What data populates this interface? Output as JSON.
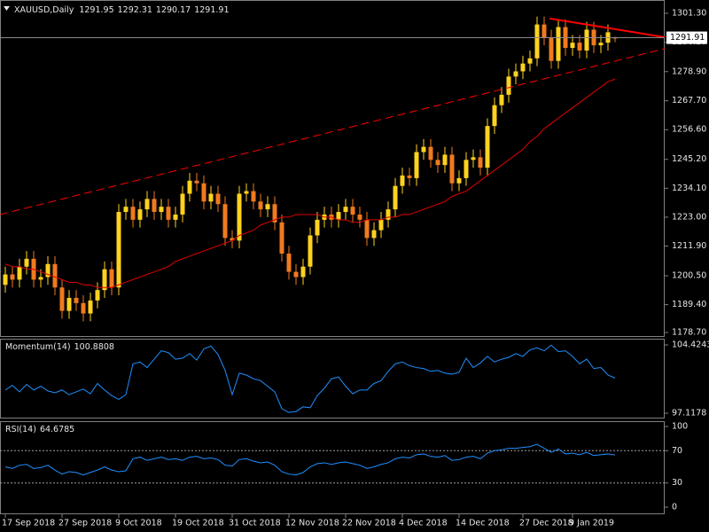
{
  "chart_data": [
    {
      "type": "candlestick",
      "title": "XAUUSD,Daily",
      "categories": [
        "17 Sep 2018",
        null,
        null,
        null,
        null,
        null,
        null,
        null,
        "27 Sep 2018",
        null,
        null,
        null,
        null,
        null,
        null,
        null,
        "9 Oct 2018",
        null,
        null,
        null,
        null,
        null,
        null,
        null,
        "19 Oct 2018",
        null,
        null,
        null,
        null,
        null,
        null,
        null,
        "31 Oct 2018",
        null,
        null,
        null,
        null,
        null,
        null,
        null,
        "12 Nov 2018",
        null,
        null,
        null,
        null,
        null,
        null,
        null,
        "22 Nov 2018",
        null,
        null,
        null,
        null,
        null,
        null,
        null,
        "4 Dec 2018",
        null,
        null,
        null,
        null,
        null,
        null,
        null,
        "14 Dec 2018",
        null,
        null,
        null,
        null,
        null,
        null,
        null,
        null,
        "27 Dec 2018",
        null,
        null,
        null,
        null,
        null,
        null,
        "9 Jan 2019",
        null,
        null,
        null,
        null,
        null,
        null
      ],
      "open": [
        1197,
        1201,
        1199,
        1204,
        1207,
        1199,
        1200,
        1205,
        1196,
        1187,
        1192,
        1190,
        1186,
        1191,
        1195,
        1203,
        1196,
        1225,
        1227,
        1222,
        1226,
        1230,
        1225,
        1227,
        1222,
        1224,
        1232,
        1237,
        1236,
        1229,
        1232,
        1228,
        1215,
        1214,
        1232,
        1233,
        1229,
        1226,
        1228,
        1221,
        1209,
        1202,
        1200,
        1204,
        1216,
        1222,
        1224,
        1222,
        1225,
        1227,
        1224,
        1222,
        1215,
        1218,
        1222,
        1226,
        1235,
        1239,
        1238,
        1248,
        1250,
        1245,
        1243,
        1247,
        1236,
        1238,
        1245,
        1246,
        1242,
        1258,
        1266,
        1270,
        1277,
        1279,
        1282,
        1284,
        1297,
        1292,
        1283,
        1296,
        1288,
        1290,
        1287,
        1295,
        1289,
        1290,
        1291.95
      ],
      "high": [
        1204,
        1204,
        1207,
        1210,
        1210,
        1203,
        1208,
        1208,
        1199,
        1195,
        1195,
        1193,
        1194,
        1198,
        1206,
        1206,
        1228,
        1230,
        1230,
        1229,
        1233,
        1233,
        1230,
        1230,
        1227,
        1235,
        1240,
        1240,
        1239,
        1235,
        1235,
        1231,
        1218,
        1235,
        1236,
        1236,
        1232,
        1231,
        1231,
        1224,
        1212,
        1205,
        1207,
        1219,
        1225,
        1227,
        1227,
        1228,
        1230,
        1230,
        1227,
        1225,
        1221,
        1225,
        1229,
        1238,
        1242,
        1242,
        1251,
        1253,
        1253,
        1248,
        1250,
        1250,
        1241,
        1248,
        1249,
        1249,
        1261,
        1269,
        1273,
        1280,
        1282,
        1285,
        1287,
        1300,
        1300,
        1295,
        1299,
        1299,
        1293,
        1293,
        1298,
        1298,
        1293,
        1297,
        1292.31
      ],
      "low": [
        1194,
        1196,
        1196,
        1201,
        1196,
        1196,
        1197,
        1193,
        1184,
        1184,
        1187,
        1183,
        1183,
        1188,
        1192,
        1193,
        1193,
        1222,
        1219,
        1219,
        1223,
        1222,
        1222,
        1219,
        1219,
        1221,
        1229,
        1233,
        1226,
        1226,
        1225,
        1212,
        1211,
        1211,
        1229,
        1226,
        1223,
        1223,
        1218,
        1206,
        1199,
        1197,
        1197,
        1201,
        1213,
        1219,
        1219,
        1219,
        1222,
        1221,
        1219,
        1212,
        1212,
        1215,
        1219,
        1223,
        1232,
        1235,
        1235,
        1245,
        1242,
        1240,
        1240,
        1233,
        1233,
        1235,
        1242,
        1239,
        1239,
        1255,
        1263,
        1267,
        1274,
        1276,
        1279,
        1281,
        1289,
        1280,
        1280,
        1285,
        1285,
        1284,
        1284,
        1286,
        1286,
        1287,
        1290.17
      ],
      "close": [
        1201,
        1199,
        1204,
        1207,
        1199,
        1200,
        1205,
        1196,
        1187,
        1192,
        1190,
        1186,
        1191,
        1195,
        1203,
        1196,
        1225,
        1227,
        1222,
        1226,
        1230,
        1225,
        1227,
        1222,
        1224,
        1232,
        1237,
        1236,
        1229,
        1232,
        1228,
        1215,
        1214,
        1232,
        1233,
        1229,
        1226,
        1228,
        1221,
        1209,
        1202,
        1200,
        1204,
        1216,
        1222,
        1224,
        1222,
        1225,
        1227,
        1224,
        1222,
        1215,
        1218,
        1222,
        1226,
        1235,
        1239,
        1238,
        1248,
        1250,
        1245,
        1243,
        1247,
        1236,
        1238,
        1245,
        1246,
        1242,
        1258,
        1266,
        1270,
        1277,
        1279,
        1282,
        1284,
        1297,
        1292,
        1283,
        1296,
        1288,
        1290,
        1287,
        1295,
        1289,
        1290,
        1294,
        1291.91
      ],
      "up_color": "#ffd21e",
      "down_color": "#f07a1e",
      "moving_average": {
        "color": "#e00000",
        "values": [
          1205,
          1204,
          1204,
          1203,
          1203,
          1202,
          1201,
          1200,
          1199,
          1198,
          1198,
          1197,
          1197,
          1196,
          1196,
          1196,
          1197,
          1198,
          1199,
          1200,
          1201,
          1202,
          1203,
          1204,
          1206,
          1207,
          1208,
          1209,
          1210,
          1211,
          1212,
          1213,
          1214,
          1216,
          1217,
          1218,
          1220,
          1221,
          1222,
          1223,
          1223,
          1224,
          1224,
          1224,
          1224,
          1223,
          1223,
          1222,
          1222,
          1221,
          1221,
          1222,
          1222,
          1222,
          1223,
          1223,
          1224,
          1224,
          1225,
          1226,
          1227,
          1228,
          1229,
          1231,
          1232,
          1233,
          1235,
          1237,
          1239,
          1241,
          1243,
          1245,
          1247,
          1249,
          1252,
          1254,
          1257,
          1259,
          1261,
          1263,
          1265,
          1267,
          1269,
          1271,
          1273,
          1275,
          1276
        ]
      },
      "trendlines": [
        {
          "x": [
            -0.75,
            93
          ],
          "y": [
            1224.0,
            1287.7
          ],
          "color": "#ff0000",
          "dash": true
        },
        {
          "x": [
            76.75,
            93
          ],
          "y": [
            1299.3,
            1292.1
          ],
          "color": "#ff0000",
          "dash": false
        }
      ],
      "ylim": [
        1177.0,
        1306.4
      ],
      "yticks": [
        {
          "value": 1301.3,
          "label": "1301.30"
        },
        {
          "value": 1290.2,
          "label": "1290.20"
        },
        {
          "value": 1278.9,
          "label": "1278.90"
        },
        {
          "value": 1267.7,
          "label": "1267.70"
        },
        {
          "value": 1256.6,
          "label": "1256.60"
        },
        {
          "value": 1245.2,
          "label": "1245.20"
        },
        {
          "value": 1234.1,
          "label": "1234.10"
        },
        {
          "value": 1223.0,
          "label": "1223.00"
        },
        {
          "value": 1211.9,
          "label": "1211.90"
        },
        {
          "value": 1200.5,
          "label": "1200.50"
        },
        {
          "value": 1189.4,
          "label": "1189.40"
        },
        {
          "value": 1178.7,
          "label": "1178.70"
        }
      ]
    },
    {
      "type": "line",
      "title": "Momentum(14)",
      "color": "#1e90ff",
      "values": [
        99.6,
        100.1,
        99.4,
        100.2,
        99.6,
        100.0,
        99.5,
        99.3,
        99.6,
        99.1,
        99.4,
        99.7,
        99.2,
        100.3,
        99.6,
        99.0,
        98.6,
        99.1,
        102.4,
        102.6,
        102.0,
        102.9,
        103.8,
        103.6,
        102.9,
        103.0,
        103.5,
        102.8,
        104.0,
        104.3,
        103.4,
        101.7,
        99.1,
        101.4,
        101.2,
        100.8,
        100.6,
        100.0,
        99.4,
        97.6,
        97.2,
        97.3,
        97.8,
        97.7,
        99.0,
        99.8,
        100.8,
        101.0,
        100.0,
        99.2,
        99.6,
        99.6,
        100.3,
        100.6,
        101.6,
        102.4,
        102.6,
        102.2,
        102.0,
        101.9,
        101.6,
        101.7,
        101.4,
        101.3,
        101.5,
        103.0,
        102.0,
        102.5,
        103.2,
        102.6,
        102.9,
        103.1,
        103.5,
        103.2,
        103.9,
        104.1,
        103.8,
        104.4,
        103.7,
        103.8,
        103.2,
        102.4,
        102.9,
        101.9,
        102.0,
        101.2,
        100.8808
      ],
      "ylim": [
        96.55,
        105.09
      ],
      "yticks": [
        104.4243,
        97.1178
      ]
    },
    {
      "type": "line",
      "title": "RSI(14)",
      "color": "#1e90ff",
      "values": [
        50,
        48,
        52,
        53,
        48,
        49,
        52,
        46,
        41,
        44,
        43,
        40,
        43,
        46,
        50,
        46,
        44,
        45,
        60,
        62,
        58,
        60,
        62,
        59,
        60,
        58,
        62,
        63,
        60,
        61,
        59,
        52,
        51,
        59,
        60,
        57,
        55,
        56,
        52,
        44,
        41,
        40,
        43,
        50,
        54,
        55,
        53,
        55,
        56,
        54,
        52,
        48,
        50,
        53,
        55,
        60,
        62,
        61,
        65,
        66,
        63,
        62,
        64,
        58,
        59,
        62,
        63,
        60,
        67,
        70,
        71,
        73,
        73,
        74,
        75,
        78,
        73,
        68,
        72,
        66,
        67,
        65,
        68,
        64,
        65,
        66,
        64.6785
      ],
      "ylim": [
        -8.8,
        106.6
      ],
      "yticks": [
        100,
        70,
        30,
        0
      ],
      "levels": [
        70,
        30
      ]
    }
  ]
}
